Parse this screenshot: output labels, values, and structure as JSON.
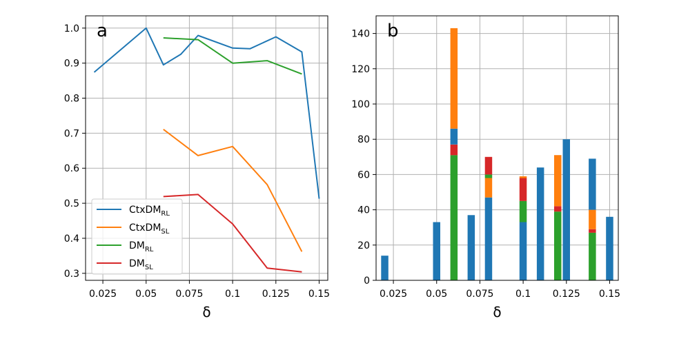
{
  "colors": {
    "CtxDM_RL": "#1f77b4",
    "CtxDM_SL": "#ff7f0e",
    "DM_RL": "#2ca02c",
    "DM_SL": "#d62728",
    "grid": "#b0b0b0"
  },
  "chart_data": [
    {
      "panel": "a",
      "type": "line",
      "xlabel": "δ",
      "ylabel": "",
      "xlim": [
        0.015,
        0.155
      ],
      "ylim": [
        0.28,
        1.035
      ],
      "xticks": [
        0.025,
        0.05,
        0.075,
        0.1,
        0.125,
        0.15
      ],
      "xtick_labels": [
        "0.025",
        "0.05",
        "0.075",
        "0.1",
        "0.125",
        "0.15"
      ],
      "yticks": [
        0.3,
        0.4,
        0.5,
        0.6,
        0.7,
        0.8,
        0.9,
        1.0
      ],
      "ytick_labels": [
        "0.3",
        "0.4",
        "0.5",
        "0.6",
        "0.7",
        "0.8",
        "0.9",
        "1.0"
      ],
      "grid": true,
      "legend_position": "lower-left",
      "series": [
        {
          "key": "CtxDM_RL",
          "name_main": "CtxDM",
          "name_sub": "RL",
          "x": [
            0.02,
            0.05,
            0.06,
            0.07,
            0.08,
            0.1,
            0.11,
            0.125,
            0.14,
            0.15
          ],
          "y": [
            0.874,
            1.0,
            0.895,
            0.925,
            0.979,
            0.943,
            0.941,
            0.975,
            0.932,
            0.513
          ]
        },
        {
          "key": "CtxDM_SL",
          "name_main": "CtxDM",
          "name_sub": "SL",
          "x": [
            0.06,
            0.08,
            0.1,
            0.12,
            0.14
          ],
          "y": [
            0.711,
            0.636,
            0.662,
            0.553,
            0.362
          ]
        },
        {
          "key": "DM_RL",
          "name_main": "DM",
          "name_sub": "RL",
          "x": [
            0.06,
            0.08,
            0.1,
            0.12,
            0.14
          ],
          "y": [
            0.972,
            0.967,
            0.9,
            0.907,
            0.869
          ]
        },
        {
          "key": "DM_SL",
          "name_main": "DM",
          "name_sub": "SL",
          "x": [
            0.06,
            0.08,
            0.1,
            0.12,
            0.14
          ],
          "y": [
            0.519,
            0.525,
            0.441,
            0.315,
            0.304
          ]
        }
      ]
    },
    {
      "panel": "b",
      "type": "bar",
      "stacked": true,
      "xlabel": "δ",
      "ylabel": "",
      "xlim": [
        0.015,
        0.155
      ],
      "ylim": [
        0,
        150
      ],
      "bar_width": 0.0042,
      "xticks": [
        0.025,
        0.05,
        0.075,
        0.1,
        0.125,
        0.15
      ],
      "xtick_labels": [
        "0.025",
        "0.05",
        "0.075",
        "0.1",
        "0.125",
        "0.15"
      ],
      "yticks": [
        0,
        20,
        40,
        60,
        80,
        100,
        120,
        140
      ],
      "ytick_labels": [
        "0",
        "20",
        "40",
        "60",
        "80",
        "100",
        "120",
        "140"
      ],
      "grid": true,
      "bars": [
        {
          "x": 0.02,
          "segments": [
            {
              "key": "CtxDM_RL",
              "value": 14
            }
          ]
        },
        {
          "x": 0.05,
          "segments": [
            {
              "key": "CtxDM_RL",
              "value": 33
            }
          ]
        },
        {
          "x": 0.06,
          "segments": [
            {
              "key": "DM_RL",
              "value": 71
            },
            {
              "key": "DM_SL",
              "value": 6
            },
            {
              "key": "CtxDM_RL",
              "value": 9
            },
            {
              "key": "CtxDM_SL",
              "value": 57
            }
          ]
        },
        {
          "x": 0.07,
          "segments": [
            {
              "key": "CtxDM_RL",
              "value": 37
            }
          ]
        },
        {
          "x": 0.08,
          "segments": [
            {
              "key": "CtxDM_RL",
              "value": 47
            },
            {
              "key": "CtxDM_SL",
              "value": 11
            },
            {
              "key": "DM_RL",
              "value": 2
            },
            {
              "key": "DM_SL",
              "value": 10
            }
          ]
        },
        {
          "x": 0.1,
          "segments": [
            {
              "key": "CtxDM_RL",
              "value": 33
            },
            {
              "key": "DM_RL",
              "value": 12
            },
            {
              "key": "DM_SL",
              "value": 13
            },
            {
              "key": "CtxDM_SL",
              "value": 1
            }
          ]
        },
        {
          "x": 0.11,
          "segments": [
            {
              "key": "CtxDM_RL",
              "value": 64
            }
          ]
        },
        {
          "x": 0.12,
          "segments": [
            {
              "key": "DM_RL",
              "value": 39
            },
            {
              "key": "DM_SL",
              "value": 3
            },
            {
              "key": "CtxDM_SL",
              "value": 29
            }
          ]
        },
        {
          "x": 0.125,
          "segments": [
            {
              "key": "CtxDM_RL",
              "value": 80
            }
          ]
        },
        {
          "x": 0.14,
          "segments": [
            {
              "key": "DM_RL",
              "value": 27
            },
            {
              "key": "DM_SL",
              "value": 2
            },
            {
              "key": "CtxDM_SL",
              "value": 11
            },
            {
              "key": "CtxDM_RL",
              "value": 29
            }
          ]
        },
        {
          "x": 0.15,
          "segments": [
            {
              "key": "CtxDM_RL",
              "value": 36
            }
          ]
        }
      ]
    }
  ]
}
